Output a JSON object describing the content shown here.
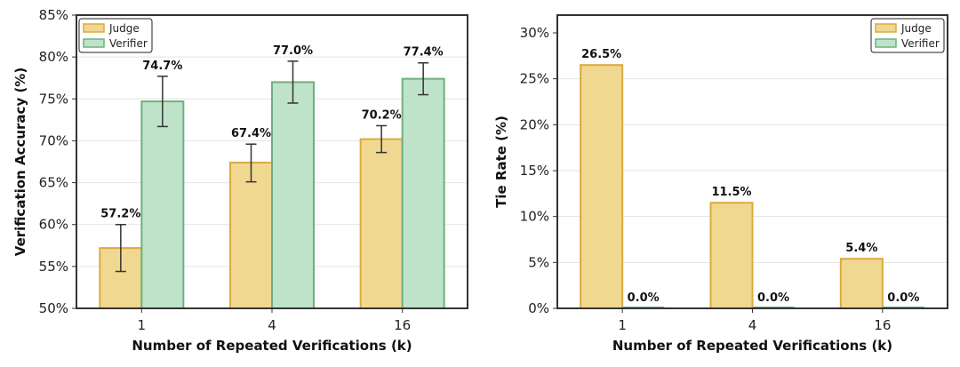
{
  "colors": {
    "judge_fill": "#f0d891",
    "judge_edge": "#dcaa3e",
    "verifier_fill": "#bfe3c8",
    "verifier_edge": "#6fae82",
    "grid": "#e3e3e3",
    "axis": "#333333"
  },
  "chart_data": [
    {
      "type": "bar",
      "title": "",
      "xlabel": "Number of Repeated Verifications (k)",
      "ylabel": "Verification Accuracy (%)",
      "categories": [
        "1",
        "4",
        "16"
      ],
      "ylim": [
        50,
        85
      ],
      "yticks": [
        "50%",
        "55%",
        "60%",
        "65%",
        "70%",
        "75%",
        "80%",
        "85%"
      ],
      "grid": true,
      "legend_position": "upper left",
      "series": [
        {
          "name": "Judge",
          "values": [
            57.2,
            67.4,
            70.2
          ],
          "labels": [
            "57.2%",
            "67.4%",
            "70.2%"
          ],
          "error_low": [
            54.4,
            65.1,
            68.6
          ],
          "error_high": [
            60.0,
            69.6,
            71.8
          ]
        },
        {
          "name": "Verifier",
          "values": [
            74.7,
            77.0,
            77.4
          ],
          "labels": [
            "74.7%",
            "77.0%",
            "77.4%"
          ],
          "error_low": [
            71.7,
            74.5,
            75.5
          ],
          "error_high": [
            77.7,
            79.5,
            79.3
          ]
        }
      ]
    },
    {
      "type": "bar",
      "title": "",
      "xlabel": "Number of Repeated Verifications (k)",
      "ylabel": "Tie Rate (%)",
      "categories": [
        "1",
        "4",
        "16"
      ],
      "ylim": [
        0,
        30.5
      ],
      "yticks": [
        "0%",
        "5%",
        "10%",
        "15%",
        "20%",
        "25%",
        "30%"
      ],
      "grid": true,
      "legend_position": "upper right",
      "series": [
        {
          "name": "Judge",
          "values": [
            26.5,
            11.5,
            5.4
          ],
          "labels": [
            "26.5%",
            "11.5%",
            "5.4%"
          ]
        },
        {
          "name": "Verifier",
          "values": [
            0.0,
            0.0,
            0.0
          ],
          "labels": [
            "0.0%",
            "0.0%",
            "0.0%"
          ]
        }
      ]
    }
  ]
}
